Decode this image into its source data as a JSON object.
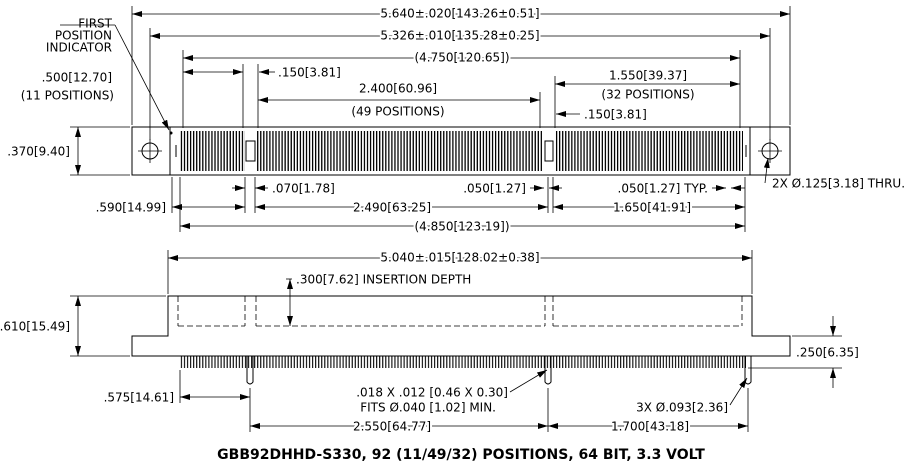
{
  "title": "GBB92DHHD-S330, 92 (11/49/32) POSITIONS, 64 BIT, 3.3 VOLT",
  "top_view": {
    "first_position_indicator": [
      "FIRST",
      "POSITION",
      "INDICATOR"
    ],
    "overall_length": "5.640±.020[143.26±0.51]",
    "hole_spacing": "5.326±.010[135.28±0.25]",
    "contact_span": "(4.750[120.65])",
    "section_1_span": ".500[12.70]",
    "section_1_positions": "(11 POSITIONS)",
    "key_1_width": ".150[3.81]",
    "section_2_span": "2.400[60.96]",
    "section_2_positions": "(49 POSITIONS)",
    "section_3_span": "1.550[39.37]",
    "section_3_positions": "(32 POSITIONS)",
    "key_2_width": ".150[3.81]",
    "width": ".370[9.40]",
    "mounting_holes": "2X Ø.125[3.18] THRU.",
    "key_1_gap": ".070[1.78]",
    "pitch": ".050[1.27]",
    "pitch_typ": ".050[1.27] TYP.",
    "key_1_offset": ".590[14.99]",
    "key_spacing": "2.490[63.25]",
    "key_2_offset": "1.650[41.91]",
    "overall_contact": "(4.850[123.19])"
  },
  "side_view": {
    "body_length": "5.040±.015[128.02±0.38]",
    "insertion_depth": ".300[7.62] INSERTION DEPTH",
    "height": ".610[15.49]",
    "tail_length": ".250[6.35]",
    "tail_size": [
      ".018 X .012 [0.46 X 0.30]",
      "FITS Ø.040 [1.02] MIN."
    ],
    "post_1_offset": ".575[14.61]",
    "posts": "3X Ø.093[2.36]",
    "post_spacing_1": "2.550[64.77]",
    "post_spacing_2": "1.700[43.18]"
  }
}
